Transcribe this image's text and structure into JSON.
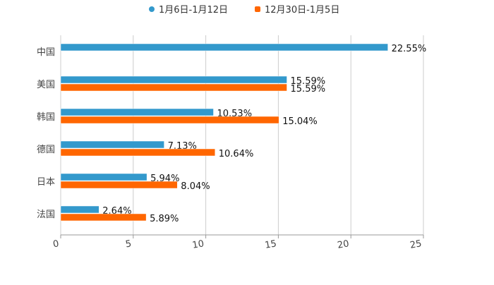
{
  "chart_data": {
    "type": "bar",
    "orientation": "horizontal",
    "categories": [
      "中国",
      "美国",
      "韩国",
      "德国",
      "日本",
      "法国"
    ],
    "series": [
      {
        "name": "1月6日-1月12日",
        "color": "#3399cc",
        "values": [
          22.55,
          15.59,
          10.53,
          7.13,
          5.94,
          2.64
        ],
        "labels": [
          "22.55%",
          "15.59%",
          "10.53%",
          "7.13%",
          "5.94%",
          "2.64%"
        ]
      },
      {
        "name": "12月30日-1月5日",
        "color": "#ff6600",
        "values": [
          null,
          15.59,
          15.04,
          10.64,
          8.04,
          5.89
        ],
        "labels": [
          null,
          "15.59%",
          "15.04%",
          "10.64%",
          "8.04%",
          "5.89%"
        ]
      }
    ],
    "xlim": [
      0,
      25
    ],
    "xticks": [
      "0",
      "5",
      "10",
      "15",
      "20",
      "25"
    ],
    "grid": true,
    "legend": "top-center",
    "title": "",
    "xlabel": "",
    "ylabel": ""
  }
}
